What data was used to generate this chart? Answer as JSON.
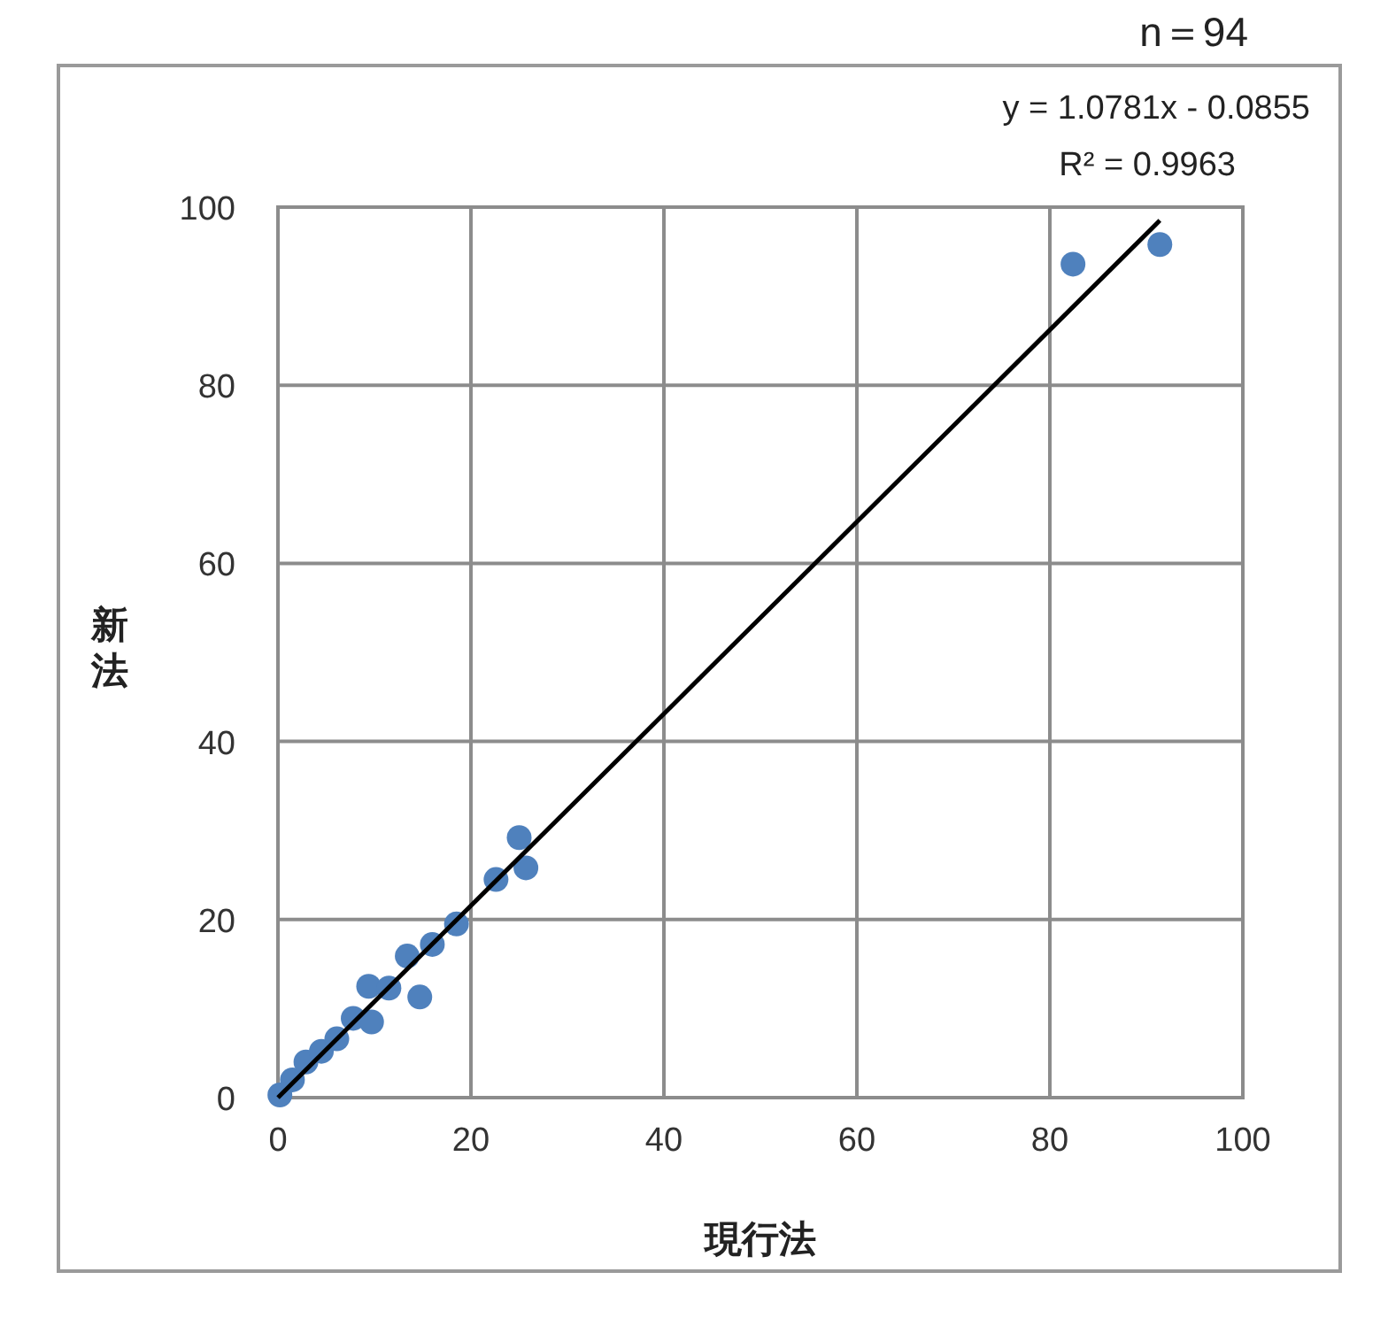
{
  "chart_data": {
    "type": "scatter",
    "xlabel": "現行法",
    "ylabel": "新法",
    "xlim": [
      0,
      100
    ],
    "ylim": [
      0,
      100
    ],
    "xticks": [
      0,
      20,
      40,
      60,
      80,
      100
    ],
    "yticks": [
      0,
      20,
      40,
      60,
      80,
      100
    ],
    "grid": true,
    "marker": "circle",
    "annotations": [
      "n＝94",
      "y = 1.0781x - 0.0855",
      "R² = 0.9963"
    ],
    "series": [
      {
        "color": "#4f81bd",
        "x": [
          0.2,
          1.5,
          2.9,
          4.5,
          6.1,
          7.8,
          9.4,
          9.7,
          11.5,
          13.4,
          14.7,
          16.0,
          18.5,
          22.6,
          25.0,
          25.7,
          82.4,
          91.4
        ],
        "values": [
          0.3,
          2.0,
          4.0,
          5.2,
          6.6,
          8.9,
          12.5,
          8.5,
          12.3,
          15.9,
          11.3,
          17.2,
          19.5,
          24.5,
          29.2,
          25.8,
          93.6,
          95.8
        ]
      },
      {
        "type": "line",
        "color": "#000000",
        "marker": "none",
        "x": [
          0,
          91.4
        ],
        "values": [
          0,
          98.5
        ]
      }
    ]
  }
}
